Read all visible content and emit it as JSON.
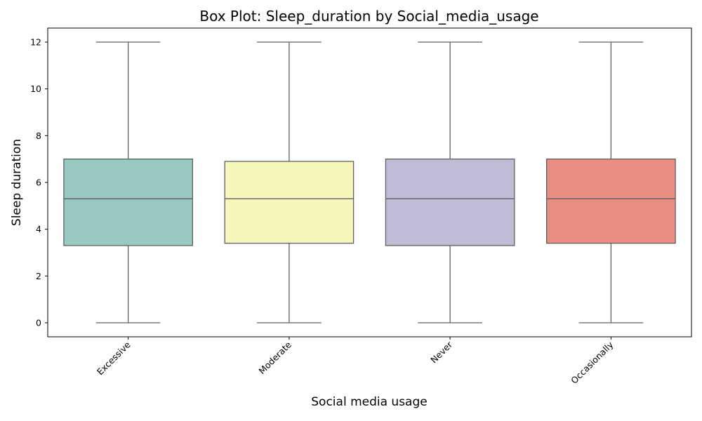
{
  "chart_data": {
    "type": "box",
    "title": "Box Plot: Sleep_duration by Social_media_usage",
    "xlabel": "Social media usage",
    "ylabel": "Sleep duration",
    "categories": [
      "Excessive",
      "Moderate",
      "Never",
      "Occasionally"
    ],
    "boxes": [
      {
        "category": "Excessive",
        "min": 0,
        "q1": 3.3,
        "median": 5.3,
        "q3": 7.0,
        "max": 12,
        "color": "#98cac1"
      },
      {
        "category": "Moderate",
        "min": 0,
        "q1": 3.4,
        "median": 5.3,
        "q3": 6.9,
        "max": 12,
        "color": "#f6f6bd"
      },
      {
        "category": "Never",
        "min": 0,
        "q1": 3.3,
        "median": 5.3,
        "q3": 7.0,
        "max": 12,
        "color": "#c0bcd6"
      },
      {
        "category": "Occasionally",
        "min": 0,
        "q1": 3.4,
        "median": 5.3,
        "q3": 7.0,
        "max": 12,
        "color": "#ea8e84"
      }
    ],
    "yticks": [
      0,
      2,
      4,
      6,
      8,
      10,
      12
    ],
    "ylim": [
      -0.6,
      12.6
    ],
    "x_tick_rotation": 45,
    "grid": false,
    "legend": "none"
  },
  "colors": {
    "box_edge": "#606060",
    "axis": "#000000",
    "background": "#ffffff"
  }
}
